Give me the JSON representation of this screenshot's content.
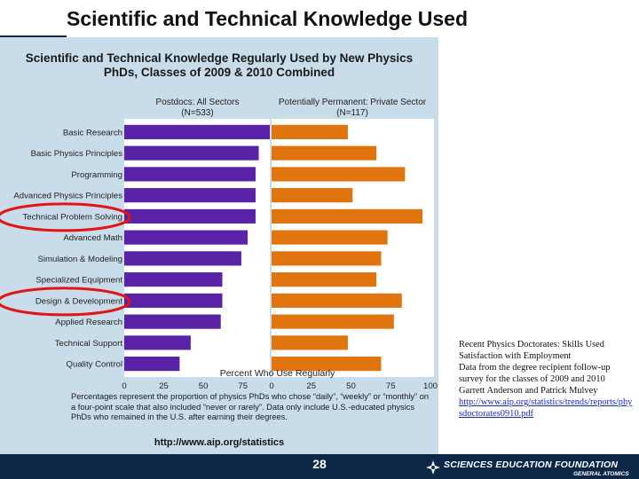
{
  "slide": {
    "title": "Scientific and Technical Knowledge Used",
    "page_number": "28",
    "source_lines": [
      "Recent Physics Doctorates:  Skills Used",
      "Satisfaction with Employment",
      "Data from the degree recipient follow-up",
      "survey for the classes of 2009 and 2010",
      "Garrett Anderson and Patrick Mulvey"
    ],
    "source_link": "http://www.aip.org/statistics/trends/reports/physdoctorates0910.pdf",
    "logo_text": "SCIENCES EDUCATION FOUNDATION",
    "logo_subtext": "GENERAL ATOMICS"
  },
  "figure": {
    "title_line1": "Scientific and Technical Knowledge Regularly Used by New Physics",
    "title_line2": "PhDs, Classes of 2009 & 2010 Combined",
    "note": "Percentages represent the proportion of physics PhDs who chose “daily”, “weekly” or “monthly” on a four-point scale that also included “never or rarely”.  Data only include U.S.-educated physics PhDs who remained in the U.S. after earning their degrees.",
    "url": "http://www.aip.org/statistics"
  },
  "chart_data": {
    "type": "bar",
    "orientation": "horizontal",
    "title": "Scientific and Technical Knowledge Regularly Used by New Physics PhDs, Classes of 2009 & 2010 Combined",
    "xlabel": "Percent Who Use Regularly",
    "categories": [
      "Basic Research",
      "Basic Physics Principles",
      "Programming",
      "Advanced Physics Principles",
      "Technical Problem Solving",
      "Advanced Math",
      "Simulation & Modeling",
      "Specialized Equipment",
      "Design & Development",
      "Applied Research",
      "Technical Support",
      "Quality Control"
    ],
    "series": [
      {
        "name": "Postdocs: All Sectors",
        "n_label": "(N=533)",
        "color": "#5a22a6",
        "values": [
          92,
          85,
          83,
          83,
          83,
          78,
          74,
          62,
          62,
          61,
          42,
          35
        ]
      },
      {
        "name": "Potentially Permanent: Private Sector",
        "n_label": "(N=117)",
        "color": "#e0740d",
        "values": [
          48,
          66,
          84,
          51,
          95,
          73,
          69,
          66,
          82,
          77,
          48,
          69
        ]
      }
    ],
    "xticks": [
      "0",
      "25",
      "50",
      "75",
      "0",
      "25",
      "50",
      "75",
      "100"
    ],
    "xlim": [
      0,
      100
    ],
    "grid": false,
    "legend": "panel headers",
    "highlighted": [
      "Technical Problem Solving",
      "Design & Development"
    ],
    "highlight_color": "#e01515"
  }
}
